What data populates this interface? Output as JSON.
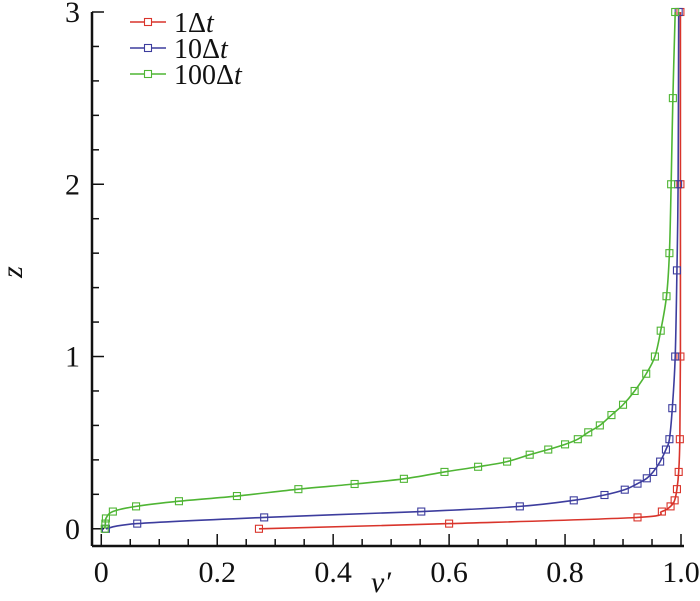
{
  "chart_data": {
    "type": "line",
    "title": "",
    "xlabel": "v′",
    "ylabel": "z",
    "xlim": [
      -0.016,
      1.0
    ],
    "ylim": [
      -0.1,
      3.0
    ],
    "grid": false,
    "legend_position": "top-left",
    "x_ticks": [
      0,
      0.2,
      0.4,
      0.6,
      0.8,
      1.0
    ],
    "x_tick_labels": [
      "0",
      "0.2",
      "0.4",
      "0.6",
      "0.8",
      "1.0"
    ],
    "y_ticks": [
      0,
      1,
      2,
      3
    ],
    "y_tick_labels": [
      "0",
      "1",
      "2",
      "3"
    ],
    "series": [
      {
        "name": "1Δt",
        "name_prefix": "1",
        "color": "#d9342b",
        "marker": "square",
        "x": [
          0.272,
          0.6,
          0.925,
          0.967,
          0.982,
          0.989,
          0.993,
          0.996,
          0.998,
          0.999,
          0.999,
          0.999
        ],
        "y": [
          0.0,
          0.03,
          0.066,
          0.1,
          0.13,
          0.165,
          0.23,
          0.33,
          0.52,
          1.0,
          2.0,
          3.0
        ]
      },
      {
        "name": "10Δt",
        "name_prefix": "10",
        "color": "#3d3d9e",
        "marker": "square",
        "x": [
          0.008,
          0.062,
          0.281,
          0.552,
          0.722,
          0.815,
          0.868,
          0.903,
          0.925,
          0.941,
          0.952,
          0.964,
          0.974,
          0.98,
          0.985,
          0.99,
          0.993,
          0.995,
          0.996
        ],
        "y": [
          0.0,
          0.03,
          0.066,
          0.1,
          0.13,
          0.165,
          0.196,
          0.227,
          0.262,
          0.293,
          0.33,
          0.39,
          0.46,
          0.52,
          0.7,
          1.0,
          1.5,
          2.0,
          3.0
        ]
      },
      {
        "name": "100Δt",
        "name_prefix": "100",
        "color": "#4fb534",
        "marker": "square",
        "x": [
          0.006,
          0.007,
          0.008,
          0.02,
          0.06,
          0.134,
          0.234,
          0.34,
          0.437,
          0.522,
          0.592,
          0.65,
          0.7,
          0.739,
          0.771,
          0.8,
          0.822,
          0.84,
          0.86,
          0.88,
          0.9,
          0.92,
          0.94,
          0.955,
          0.965,
          0.975,
          0.98,
          0.983,
          0.986,
          0.99
        ],
        "y": [
          0.0,
          0.03,
          0.06,
          0.1,
          0.13,
          0.16,
          0.19,
          0.23,
          0.26,
          0.29,
          0.33,
          0.36,
          0.39,
          0.43,
          0.46,
          0.49,
          0.52,
          0.56,
          0.6,
          0.66,
          0.72,
          0.8,
          0.9,
          1.0,
          1.15,
          1.35,
          1.6,
          2.0,
          2.5,
          3.0
        ]
      }
    ]
  }
}
